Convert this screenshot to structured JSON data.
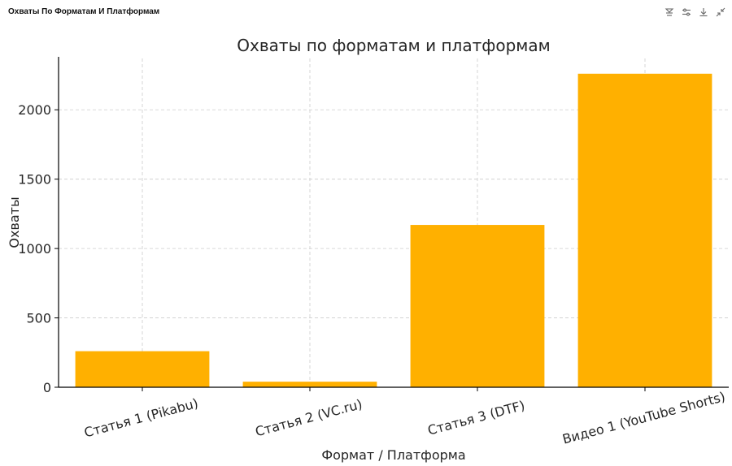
{
  "window": {
    "title": "Охваты По Форматам И Платформам"
  },
  "toolbar": {
    "icons": [
      "chart-style-icon",
      "series-settings-icon",
      "download-icon",
      "collapse-icon"
    ]
  },
  "colors": {
    "bar": "#FFB000",
    "grid": "#cccccc",
    "axis": "#000000"
  },
  "chart_data": {
    "type": "bar",
    "title": "Охваты по форматам и платформам",
    "xlabel": "Формат / Платформа",
    "ylabel": "Охваты",
    "categories": [
      "Статья 1 (Pikabu)",
      "Статья 2 (VC.ru)",
      "Статья 3 (DTF)",
      "Видео 1 (YouTube Shorts)"
    ],
    "values": [
      260,
      40,
      1170,
      2260
    ],
    "ylim": [
      0,
      2370
    ],
    "yticks": [
      0,
      500,
      1000,
      1500,
      2000
    ],
    "grid": true,
    "grid_style": "dashed",
    "x_tick_rotation": "slanted"
  }
}
